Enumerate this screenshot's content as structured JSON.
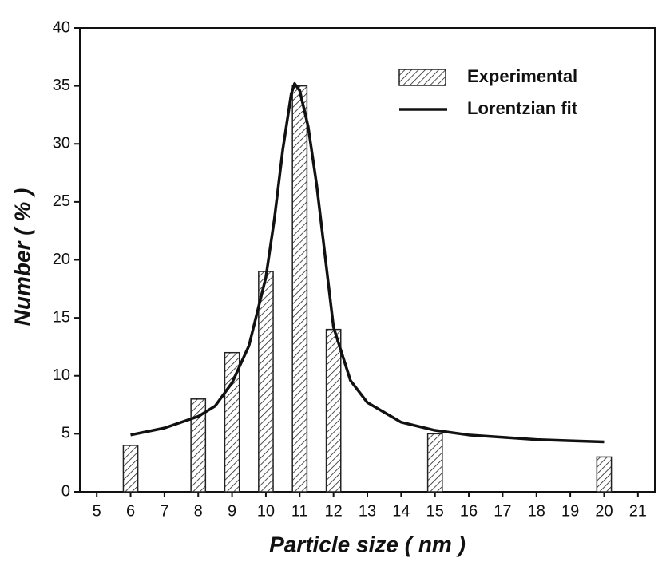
{
  "chart_data": {
    "type": "bar",
    "x_label": "Particle size ( nm )",
    "y_label": "Number ( % )",
    "xlim": [
      4.5,
      21.5
    ],
    "ylim": [
      0,
      40
    ],
    "xticks": [
      5,
      6,
      7,
      8,
      9,
      10,
      11,
      12,
      13,
      14,
      15,
      16,
      17,
      18,
      19,
      20,
      21
    ],
    "yticks": [
      0,
      5,
      10,
      15,
      20,
      25,
      30,
      35,
      40
    ],
    "legend": "upper right",
    "series": [
      {
        "name": "Experimental",
        "type": "bar",
        "color": "#222222",
        "x": [
          6,
          8,
          9,
          10,
          11,
          12,
          15,
          20
        ],
        "values": [
          4,
          8,
          12,
          19,
          35,
          14,
          5,
          3
        ]
      },
      {
        "name": "Lorentzian fit",
        "type": "line",
        "color": "#111111",
        "x": [
          6,
          7,
          8,
          8.5,
          9,
          9.5,
          10,
          10.25,
          10.5,
          10.75,
          10.85,
          11,
          11.25,
          11.5,
          12,
          12.5,
          13,
          14,
          15,
          16,
          17,
          18,
          19,
          20
        ],
        "values": [
          4.9,
          5.5,
          6.5,
          7.4,
          9.4,
          12.6,
          18.5,
          23.5,
          29.5,
          34.3,
          35.2,
          34.6,
          31.5,
          26.5,
          14.2,
          9.6,
          7.7,
          6.0,
          5.3,
          4.9,
          4.7,
          4.5,
          4.4,
          4.3
        ]
      }
    ]
  }
}
